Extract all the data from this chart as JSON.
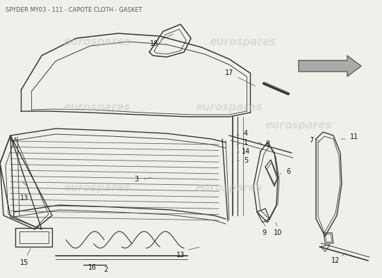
{
  "title": "SPYDER MY03 - 111 - CAPOTE CLOTH - GASKET",
  "title_fontsize": 6.0,
  "title_color": "#555555",
  "background_color": "#f0f0eb",
  "watermark_text": "eurospares",
  "watermark_color": "#c8c8c0",
  "watermark_alpha": 0.5,
  "line_color": "#333333",
  "label_fontsize": 7.0,
  "label_color": "#111111"
}
